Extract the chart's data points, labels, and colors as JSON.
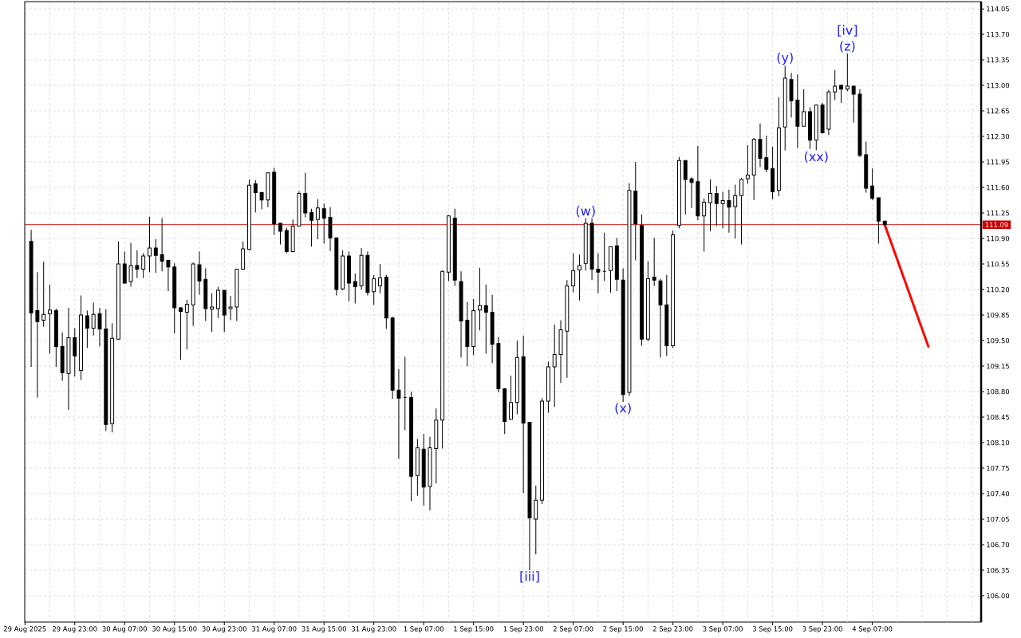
{
  "chart_data": {
    "type": "candlestick",
    "x": [
      "2025-08-29T16:00",
      "2025-08-29T17:00",
      "2025-08-29T18:00",
      "2025-08-29T19:00",
      "2025-08-29T20:00",
      "2025-08-29T21:00",
      "2025-08-29T22:00",
      "2025-08-29T23:00",
      "2025-08-30T00:00",
      "2025-08-30T01:00",
      "2025-08-30T02:00",
      "2025-08-30T03:00",
      "2025-08-30T04:00",
      "2025-08-30T05:00",
      "2025-08-30T06:00",
      "2025-08-30T07:00",
      "2025-08-30T08:00",
      "2025-08-30T09:00",
      "2025-08-30T10:00",
      "2025-08-30T11:00",
      "2025-08-30T12:00",
      "2025-08-30T13:00",
      "2025-08-30T14:00",
      "2025-08-30T15:00",
      "2025-08-30T16:00",
      "2025-08-30T17:00",
      "2025-08-30T18:00",
      "2025-08-30T19:00",
      "2025-08-30T20:00",
      "2025-08-30T21:00",
      "2025-08-30T22:00",
      "2025-08-30T23:00",
      "2025-08-31T00:00",
      "2025-08-31T01:00",
      "2025-08-31T02:00",
      "2025-08-31T03:00",
      "2025-08-31T04:00",
      "2025-08-31T05:00",
      "2025-08-31T06:00",
      "2025-08-31T07:00",
      "2025-08-31T08:00",
      "2025-08-31T09:00",
      "2025-08-31T10:00",
      "2025-08-31T11:00",
      "2025-08-31T12:00",
      "2025-08-31T13:00",
      "2025-08-31T14:00",
      "2025-08-31T15:00",
      "2025-08-31T16:00",
      "2025-08-31T17:00",
      "2025-08-31T18:00",
      "2025-08-31T19:00",
      "2025-08-31T20:00",
      "2025-08-31T21:00",
      "2025-08-31T22:00",
      "2025-08-31T23:00",
      "2025-09-01T00:00",
      "2025-09-01T01:00",
      "2025-09-01T02:00",
      "2025-09-01T03:00",
      "2025-09-01T04:00",
      "2025-09-01T05:00",
      "2025-09-01T06:00",
      "2025-09-01T07:00",
      "2025-09-01T08:00",
      "2025-09-01T09:00",
      "2025-09-01T10:00",
      "2025-09-01T11:00",
      "2025-09-01T12:00",
      "2025-09-01T13:00",
      "2025-09-01T14:00",
      "2025-09-01T15:00",
      "2025-09-01T16:00",
      "2025-09-01T17:00",
      "2025-09-01T18:00",
      "2025-09-01T19:00",
      "2025-09-01T20:00",
      "2025-09-01T21:00",
      "2025-09-01T22:00",
      "2025-09-01T23:00",
      "2025-09-02T00:00",
      "2025-09-02T01:00",
      "2025-09-02T02:00",
      "2025-09-02T03:00",
      "2025-09-02T04:00",
      "2025-09-02T05:00",
      "2025-09-02T06:00",
      "2025-09-02T07:00",
      "2025-09-02T08:00",
      "2025-09-02T09:00",
      "2025-09-02T10:00",
      "2025-09-02T11:00",
      "2025-09-02T12:00",
      "2025-09-02T13:00",
      "2025-09-02T14:00",
      "2025-09-02T15:00",
      "2025-09-02T16:00",
      "2025-09-02T17:00",
      "2025-09-02T18:00",
      "2025-09-02T19:00",
      "2025-09-02T20:00",
      "2025-09-02T21:00",
      "2025-09-02T22:00",
      "2025-09-02T23:00",
      "2025-09-03T00:00",
      "2025-09-03T01:00",
      "2025-09-03T02:00",
      "2025-09-03T03:00",
      "2025-09-03T04:00",
      "2025-09-03T05:00",
      "2025-09-03T06:00",
      "2025-09-03T07:00",
      "2025-09-03T08:00",
      "2025-09-03T09:00",
      "2025-09-03T10:00",
      "2025-09-03T11:00",
      "2025-09-03T12:00",
      "2025-09-03T13:00",
      "2025-09-03T14:00",
      "2025-09-03T15:00",
      "2025-09-03T16:00",
      "2025-09-03T17:00",
      "2025-09-03T18:00",
      "2025-09-03T19:00",
      "2025-09-03T20:00",
      "2025-09-03T21:00",
      "2025-09-03T22:00",
      "2025-09-03T23:00",
      "2025-09-04T00:00",
      "2025-09-04T01:00",
      "2025-09-04T02:00",
      "2025-09-04T03:00",
      "2025-09-04T04:00",
      "2025-09-04T05:00",
      "2025-09-04T06:00",
      "2025-09-04T07:00",
      "2025-09-04T08:00",
      "2025-09-04T09:00"
    ],
    "ohlc": [
      [
        110.86,
        111.02,
        109.14,
        109.88
      ],
      [
        109.91,
        110.44,
        108.72,
        109.76
      ],
      [
        109.78,
        110.58,
        109.69,
        109.86
      ],
      [
        109.87,
        110.27,
        109.32,
        109.92
      ],
      [
        109.91,
        109.94,
        109.14,
        109.42
      ],
      [
        109.42,
        109.61,
        108.95,
        109.06
      ],
      [
        109.05,
        109.95,
        108.55,
        109.54
      ],
      [
        109.54,
        109.67,
        109.01,
        109.29
      ],
      [
        109.09,
        110.12,
        108.96,
        109.85
      ],
      [
        109.84,
        109.91,
        109.4,
        109.67
      ],
      [
        109.67,
        110.02,
        109.57,
        109.86
      ],
      [
        109.87,
        109.95,
        109.42,
        109.66
      ],
      [
        109.66,
        109.93,
        108.26,
        108.35
      ],
      [
        108.36,
        109.74,
        108.24,
        109.53
      ],
      [
        109.52,
        110.86,
        109.51,
        110.55
      ],
      [
        110.55,
        110.72,
        110.28,
        110.29
      ],
      [
        110.31,
        110.84,
        110.24,
        110.53
      ],
      [
        110.53,
        110.74,
        110.36,
        110.48
      ],
      [
        110.48,
        110.7,
        110.36,
        110.66
      ],
      [
        110.66,
        111.2,
        110.44,
        110.77
      ],
      [
        110.77,
        110.89,
        110.43,
        110.67
      ],
      [
        110.68,
        111.18,
        110.45,
        110.59
      ],
      [
        110.6,
        110.61,
        110.18,
        110.51
      ],
      [
        110.51,
        110.56,
        109.6,
        109.95
      ],
      [
        109.95,
        109.96,
        109.24,
        109.9
      ],
      [
        109.89,
        110.06,
        109.38,
        110.0
      ],
      [
        109.99,
        110.57,
        109.7,
        110.55
      ],
      [
        110.54,
        110.72,
        110.13,
        110.32
      ],
      [
        110.34,
        110.49,
        109.77,
        109.94
      ],
      [
        109.93,
        110.15,
        109.62,
        109.96
      ],
      [
        109.94,
        110.24,
        109.81,
        110.19
      ],
      [
        110.19,
        110.19,
        109.62,
        109.85
      ],
      [
        109.94,
        110.11,
        109.78,
        109.96
      ],
      [
        109.96,
        110.48,
        109.77,
        110.48
      ],
      [
        110.48,
        110.86,
        110.48,
        110.76
      ],
      [
        110.75,
        111.71,
        110.74,
        111.63
      ],
      [
        111.65,
        111.7,
        111.26,
        111.53
      ],
      [
        111.53,
        111.54,
        111.3,
        111.43
      ],
      [
        111.43,
        111.8,
        111.33,
        111.8
      ],
      [
        111.81,
        111.87,
        110.95,
        111.1
      ],
      [
        111.11,
        111.11,
        110.82,
        111.0
      ],
      [
        111.01,
        111.05,
        110.7,
        110.72
      ],
      [
        110.72,
        111.16,
        110.71,
        111.07
      ],
      [
        111.07,
        111.55,
        111.07,
        111.52
      ],
      [
        111.52,
        111.8,
        111.19,
        111.25
      ],
      [
        111.26,
        111.31,
        110.79,
        111.15
      ],
      [
        111.16,
        111.44,
        110.89,
        111.32
      ],
      [
        111.31,
        111.38,
        110.83,
        111.18
      ],
      [
        111.19,
        111.33,
        110.73,
        110.91
      ],
      [
        110.91,
        110.91,
        110.12,
        110.2
      ],
      [
        110.21,
        110.74,
        110.19,
        110.66
      ],
      [
        110.66,
        110.72,
        110.04,
        110.29
      ],
      [
        110.31,
        110.42,
        110.01,
        110.24
      ],
      [
        110.25,
        110.77,
        110.2,
        110.67
      ],
      [
        110.67,
        110.72,
        110.12,
        110.16
      ],
      [
        110.17,
        110.4,
        109.99,
        110.35
      ],
      [
        110.25,
        110.55,
        110.15,
        110.36
      ],
      [
        110.37,
        110.4,
        109.66,
        109.81
      ],
      [
        109.81,
        109.83,
        108.7,
        108.82
      ],
      [
        108.82,
        109.11,
        107.88,
        108.71
      ],
      [
        108.72,
        109.28,
        108.27,
        108.72
      ],
      [
        108.72,
        108.8,
        107.3,
        107.64
      ],
      [
        107.65,
        108.15,
        107.37,
        108.03
      ],
      [
        108.01,
        108.22,
        107.24,
        107.49
      ],
      [
        107.5,
        108.18,
        107.17,
        108.03
      ],
      [
        108.02,
        108.57,
        107.54,
        108.41
      ],
      [
        108.41,
        110.46,
        108.02,
        110.45
      ],
      [
        110.44,
        111.22,
        110.32,
        111.21
      ],
      [
        111.18,
        111.31,
        110.25,
        110.33
      ],
      [
        110.31,
        110.45,
        109.27,
        109.77
      ],
      [
        109.78,
        110.03,
        109.15,
        109.42
      ],
      [
        109.42,
        110.07,
        109.3,
        109.91
      ],
      [
        109.92,
        110.5,
        109.64,
        109.98
      ],
      [
        109.98,
        110.27,
        109.32,
        109.89
      ],
      [
        109.89,
        110.13,
        109.19,
        109.45
      ],
      [
        109.46,
        109.55,
        108.79,
        108.84
      ],
      [
        108.84,
        108.85,
        108.22,
        108.39
      ],
      [
        108.42,
        109.02,
        108.42,
        108.65
      ],
      [
        108.65,
        109.5,
        108.49,
        109.27
      ],
      [
        109.28,
        109.57,
        107.41,
        108.37
      ],
      [
        108.38,
        108.38,
        106.35,
        107.07
      ],
      [
        107.05,
        107.51,
        106.57,
        107.31
      ],
      [
        107.31,
        108.71,
        107.26,
        108.67
      ],
      [
        108.67,
        109.21,
        108.51,
        109.14
      ],
      [
        109.14,
        109.72,
        108.59,
        109.31
      ],
      [
        109.31,
        109.78,
        108.92,
        109.65
      ],
      [
        109.63,
        110.33,
        108.99,
        110.25
      ],
      [
        110.25,
        110.7,
        110.16,
        110.46
      ],
      [
        110.47,
        110.68,
        110.05,
        110.53
      ],
      [
        110.56,
        111.18,
        110.46,
        111.11
      ],
      [
        111.11,
        111.18,
        110.33,
        110.48
      ],
      [
        110.48,
        110.7,
        110.15,
        110.44
      ],
      [
        110.45,
        110.98,
        110.32,
        110.45
      ],
      [
        110.46,
        110.79,
        110.16,
        110.79
      ],
      [
        110.8,
        110.91,
        110.18,
        110.34
      ],
      [
        110.33,
        110.49,
        108.66,
        108.76
      ],
      [
        108.79,
        111.66,
        108.74,
        111.56
      ],
      [
        111.55,
        111.95,
        110.6,
        111.1
      ],
      [
        111.08,
        111.23,
        109.43,
        109.52
      ],
      [
        109.52,
        110.59,
        109.49,
        110.35
      ],
      [
        110.37,
        110.91,
        110.25,
        110.33
      ],
      [
        110.32,
        110.35,
        109.27,
        109.99
      ],
      [
        109.99,
        110.4,
        109.29,
        109.43
      ],
      [
        109.43,
        111.01,
        109.4,
        110.95
      ],
      [
        111.08,
        112.02,
        111.04,
        111.97
      ],
      [
        111.97,
        111.97,
        111.23,
        111.71
      ],
      [
        111.72,
        111.74,
        111.32,
        111.67
      ],
      [
        111.68,
        112.17,
        111.15,
        111.21
      ],
      [
        111.21,
        111.45,
        110.72,
        111.4
      ],
      [
        111.39,
        111.71,
        111.0,
        111.52
      ],
      [
        111.52,
        111.62,
        111.07,
        111.38
      ],
      [
        111.38,
        111.54,
        111.04,
        111.42
      ],
      [
        111.42,
        111.57,
        110.98,
        111.33
      ],
      [
        111.34,
        111.64,
        110.9,
        111.49
      ],
      [
        111.49,
        111.73,
        110.82,
        111.71
      ],
      [
        111.72,
        112.18,
        111.65,
        111.77
      ],
      [
        111.77,
        112.28,
        111.43,
        112.26
      ],
      [
        112.26,
        112.48,
        111.88,
        112.0
      ],
      [
        112.01,
        112.31,
        111.81,
        111.85
      ],
      [
        111.86,
        112.16,
        111.44,
        111.54
      ],
      [
        111.56,
        112.84,
        111.48,
        112.42
      ],
      [
        112.43,
        113.27,
        112.11,
        113.1
      ],
      [
        113.08,
        113.17,
        112.56,
        112.79
      ],
      [
        112.8,
        113.15,
        112.14,
        112.44
      ],
      [
        112.44,
        112.95,
        112.44,
        112.64
      ],
      [
        112.64,
        112.7,
        112.13,
        112.25
      ],
      [
        112.25,
        112.73,
        112.11,
        112.73
      ],
      [
        112.73,
        112.76,
        112.34,
        112.35
      ],
      [
        112.4,
        112.94,
        112.32,
        112.91
      ],
      [
        112.91,
        113.21,
        112.8,
        112.99
      ],
      [
        113.0,
        113.01,
        112.76,
        112.95
      ],
      [
        112.95,
        113.44,
        112.92,
        112.99
      ],
      [
        112.99,
        112.99,
        112.49,
        112.88
      ],
      [
        112.88,
        112.95,
        112.02,
        112.04
      ],
      [
        112.05,
        112.23,
        111.53,
        111.59
      ],
      [
        111.62,
        111.86,
        111.43,
        111.45
      ],
      [
        111.46,
        111.46,
        110.83,
        111.14
      ],
      [
        111.14,
        111.14,
        111.09,
        111.09
      ]
    ],
    "series": [
      {
        "type": "line",
        "x": [
          "2025-09-04T09:00",
          "2025-09-04T16:00"
        ],
        "values": [
          111.09,
          109.42
        ],
        "color": "#ff0000"
      }
    ],
    "xlim": [
      "2025-08-29T14:58",
      "2025-09-05T00:28"
    ],
    "xticks": [
      {
        "value": "2025-08-29T15:00",
        "label": "29 Aug 2025"
      },
      {
        "value": "2025-08-29T19:00",
        "label": null
      },
      {
        "value": "2025-08-29T23:00",
        "label": "29 Aug 23:00"
      },
      {
        "value": "2025-08-30T03:00",
        "label": null
      },
      {
        "value": "2025-08-30T07:00",
        "label": "30 Aug 07:00"
      },
      {
        "value": "2025-08-30T11:00",
        "label": null
      },
      {
        "value": "2025-08-30T15:00",
        "label": "30 Aug 15:00"
      },
      {
        "value": "2025-08-30T19:00",
        "label": null
      },
      {
        "value": "2025-08-30T23:00",
        "label": "30 Aug 23:00"
      },
      {
        "value": "2025-08-31T03:00",
        "label": null
      },
      {
        "value": "2025-08-31T07:00",
        "label": "31 Aug 07:00"
      },
      {
        "value": "2025-08-31T11:00",
        "label": null
      },
      {
        "value": "2025-08-31T15:00",
        "label": "31 Aug 15:00"
      },
      {
        "value": "2025-08-31T19:00",
        "label": null
      },
      {
        "value": "2025-08-31T23:00",
        "label": "31 Aug 23:00"
      },
      {
        "value": "2025-09-01T03:00",
        "label": null
      },
      {
        "value": "2025-09-01T07:00",
        "label": "1 Sep 07:00"
      },
      {
        "value": "2025-09-01T11:00",
        "label": null
      },
      {
        "value": "2025-09-01T15:00",
        "label": "1 Sep 15:00"
      },
      {
        "value": "2025-09-01T19:00",
        "label": null
      },
      {
        "value": "2025-09-01T23:00",
        "label": "1 Sep 23:00"
      },
      {
        "value": "2025-09-02T03:00",
        "label": null
      },
      {
        "value": "2025-09-02T07:00",
        "label": "2 Sep 07:00"
      },
      {
        "value": "2025-09-02T11:00",
        "label": null
      },
      {
        "value": "2025-09-02T15:00",
        "label": "2 Sep 15:00"
      },
      {
        "value": "2025-09-02T19:00",
        "label": null
      },
      {
        "value": "2025-09-02T23:00",
        "label": "2 Sep 23:00"
      },
      {
        "value": "2025-09-03T03:00",
        "label": null
      },
      {
        "value": "2025-09-03T07:00",
        "label": "3 Sep 07:00"
      },
      {
        "value": "2025-09-03T11:00",
        "label": null
      },
      {
        "value": "2025-09-03T15:00",
        "label": "3 Sep 15:00"
      },
      {
        "value": "2025-09-03T19:00",
        "label": null
      },
      {
        "value": "2025-09-03T23:00",
        "label": "3 Sep 23:00"
      },
      {
        "value": "2025-09-04T03:00",
        "label": null
      },
      {
        "value": "2025-09-04T07:00",
        "label": "4 Sep 07:00"
      },
      {
        "value": "2025-09-04T11:00",
        "label": null
      },
      {
        "value": "2025-09-04T15:00",
        "label": null
      },
      {
        "value": "2025-09-04T19:00",
        "label": null
      },
      {
        "value": "2025-09-04T23:00",
        "label": null
      }
    ],
    "ylim": [
      105.64,
      114.15
    ],
    "yticks": [
      114.05,
      {
        "value": 113.7,
        "label": "113.70"
      },
      113.35,
      {
        "value": 113,
        "label": "113.00"
      },
      112.65,
      {
        "value": 112.3,
        "label": "112.30"
      },
      111.95,
      {
        "value": 111.6,
        "label": "111.60"
      },
      111.25,
      {
        "value": 110.9,
        "label": "110.90"
      },
      110.55,
      {
        "value": 110.2,
        "label": "110.20"
      },
      109.85,
      {
        "value": 109.5,
        "label": "109.50"
      },
      109.15,
      {
        "value": 108.8,
        "label": "108.80"
      },
      108.45,
      {
        "value": 108.1,
        "label": "108.10"
      },
      107.75,
      {
        "value": 107.4,
        "label": "107.40"
      },
      107.05,
      {
        "value": 106.7,
        "label": "106.70"
      },
      106.35,
      {
        "value": 106,
        "label": "106.00"
      }
    ],
    "grid": true,
    "ref_lines": [
      {
        "axis": "y",
        "value": 111.09,
        "label": "111.09",
        "color": "#cc0000"
      }
    ],
    "annotations": [
      {
        "text": "(w)",
        "x": "2025-09-02T09:00",
        "y": 111.18
      },
      {
        "text": "(x)",
        "x": "2025-09-02T15:00",
        "y": 108.66
      },
      {
        "text": "(y)",
        "x": "2025-09-03T17:00",
        "y": 113.27
      },
      {
        "text": "(z)",
        "x": "2025-09-04T03:00",
        "y": 113.44
      },
      {
        "text": "[iv]",
        "x": "2025-09-04T03:00",
        "y": 113.44
      },
      {
        "text": "(xx)",
        "x": "2025-09-03T22:00",
        "y": 112.11
      },
      {
        "text": "[iii]",
        "x": "2025-09-02T00:00",
        "y": 106.35
      }
    ]
  }
}
